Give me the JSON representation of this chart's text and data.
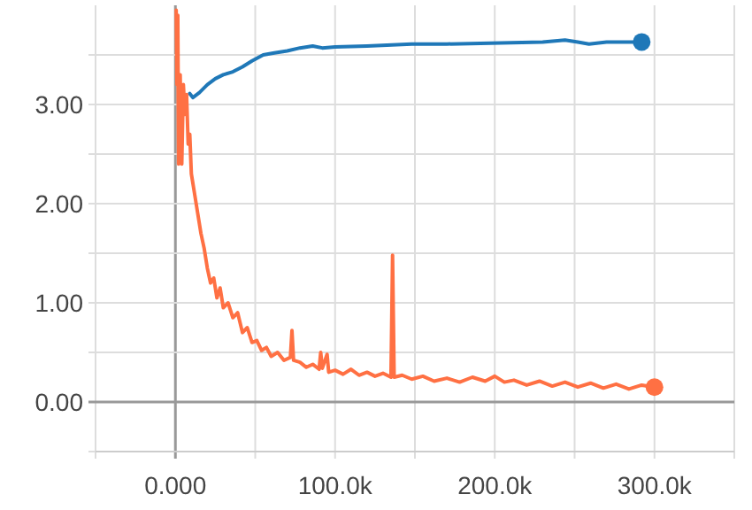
{
  "chart_data": {
    "type": "line",
    "xlim": [
      -50000,
      350000
    ],
    "ylim": [
      -0.5,
      4.0
    ],
    "xticks": [
      {
        "value": -50000,
        "label": null
      },
      {
        "value": 0,
        "label": "0.000"
      },
      {
        "value": 50000,
        "label": null
      },
      {
        "value": 100000,
        "label": "100.0k"
      },
      {
        "value": 150000,
        "label": null
      },
      {
        "value": 200000,
        "label": "200.0k"
      },
      {
        "value": 250000,
        "label": null
      },
      {
        "value": 300000,
        "label": "300.0k"
      },
      {
        "value": 350000,
        "label": null
      }
    ],
    "yticks": [
      {
        "value": -0.5,
        "label": null
      },
      {
        "value": 0,
        "label": "0.00"
      },
      {
        "value": 0.5,
        "label": null
      },
      {
        "value": 1,
        "label": "1.00"
      },
      {
        "value": 1.5,
        "label": null
      },
      {
        "value": 2,
        "label": "2.00"
      },
      {
        "value": 2.5,
        "label": null
      },
      {
        "value": 3,
        "label": "3.00"
      },
      {
        "value": 3.5,
        "label": null
      }
    ],
    "grid": true,
    "line_style": "solid",
    "series": [
      {
        "color": "#1f78b8",
        "x": [
          9000,
          11000,
          15000,
          20000,
          25000,
          30000,
          36000,
          42000,
          48000,
          55000,
          62000,
          70000,
          78000,
          86000,
          92000,
          100000,
          120000,
          148000,
          170000,
          204000,
          230000,
          244000,
          252000,
          259000,
          270000,
          292000
        ],
        "values": [
          3.11,
          3.07,
          3.12,
          3.2,
          3.26,
          3.3,
          3.33,
          3.38,
          3.44,
          3.5,
          3.52,
          3.54,
          3.57,
          3.59,
          3.57,
          3.58,
          3.59,
          3.61,
          3.61,
          3.62,
          3.63,
          3.65,
          3.63,
          3.61,
          3.63,
          3.63
        ]
      },
      {
        "color": "#ff7043",
        "x": [
          500,
          1000,
          1500,
          2000,
          3000,
          4000,
          5000,
          6000,
          7000,
          8000,
          9000,
          10000,
          12000,
          14000,
          16000,
          18000,
          20000,
          22000,
          24000,
          26000,
          28000,
          30000,
          33000,
          36000,
          39000,
          42000,
          45000,
          48000,
          51000,
          54000,
          57000,
          60000,
          64000,
          68000,
          72000,
          73000,
          74000,
          78000,
          82000,
          86000,
          90000,
          91000,
          92000,
          95000,
          96000,
          100000,
          105000,
          110000,
          115000,
          120000,
          125000,
          130000,
          135000,
          136000,
          137000,
          142000,
          148000,
          155000,
          162000,
          170000,
          178000,
          186000,
          194000,
          200000,
          206000,
          212000,
          220000,
          228000,
          236000,
          244000,
          252000,
          260000,
          268000,
          276000,
          284000,
          292000,
          300000
        ],
        "values": [
          3.95,
          3.2,
          3.9,
          2.4,
          3.3,
          2.4,
          3.2,
          2.9,
          3.1,
          2.6,
          2.7,
          2.3,
          2.1,
          1.9,
          1.7,
          1.55,
          1.35,
          1.2,
          1.25,
          1.05,
          1.15,
          0.95,
          1.0,
          0.85,
          0.9,
          0.7,
          0.75,
          0.6,
          0.62,
          0.52,
          0.55,
          0.46,
          0.5,
          0.42,
          0.45,
          0.72,
          0.42,
          0.4,
          0.35,
          0.38,
          0.33,
          0.5,
          0.34,
          0.48,
          0.3,
          0.32,
          0.28,
          0.33,
          0.27,
          0.3,
          0.26,
          0.29,
          0.25,
          1.48,
          0.25,
          0.27,
          0.23,
          0.26,
          0.21,
          0.24,
          0.2,
          0.25,
          0.21,
          0.26,
          0.2,
          0.22,
          0.17,
          0.21,
          0.16,
          0.2,
          0.15,
          0.19,
          0.14,
          0.18,
          0.13,
          0.17,
          0.15
        ]
      }
    ]
  }
}
